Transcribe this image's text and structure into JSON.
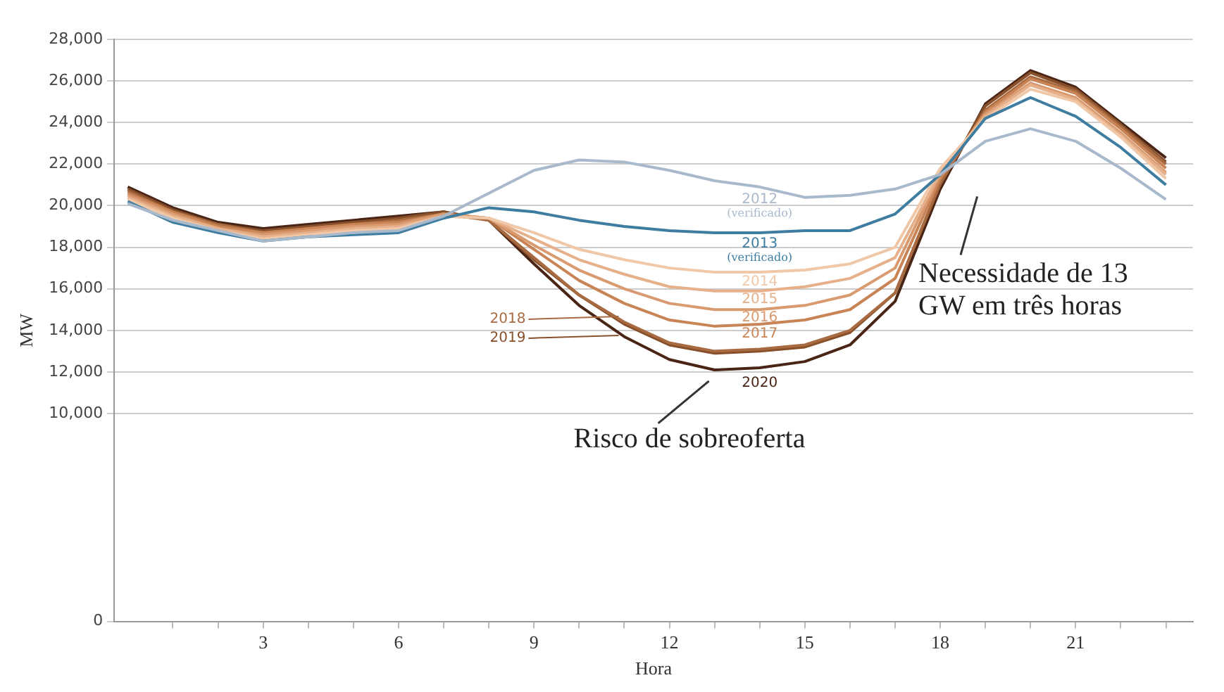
{
  "chart_data": {
    "type": "line",
    "xlabel": "Hora",
    "ylabel": "MW",
    "x": [
      0,
      1,
      2,
      3,
      4,
      5,
      6,
      7,
      8,
      9,
      10,
      11,
      12,
      13,
      14,
      15,
      16,
      17,
      18,
      19,
      20,
      21,
      22,
      23
    ],
    "xlim": [
      -0.3,
      23.6
    ],
    "xticks": [
      {
        "value": 1,
        "label": null
      },
      {
        "value": 2,
        "label": null
      },
      3,
      {
        "value": 4,
        "label": null
      },
      {
        "value": 5,
        "label": null
      },
      6,
      {
        "value": 7,
        "label": null
      },
      {
        "value": 8,
        "label": null
      },
      9,
      {
        "value": 10,
        "label": null
      },
      {
        "value": 11,
        "label": null
      },
      12,
      {
        "value": 13,
        "label": null
      },
      {
        "value": 14,
        "label": null
      },
      15,
      {
        "value": 16,
        "label": null
      },
      {
        "value": 17,
        "label": null
      },
      18,
      {
        "value": 19,
        "label": null
      },
      {
        "value": 20,
        "label": null
      },
      21,
      {
        "value": 22,
        "label": null
      },
      {
        "value": 23,
        "label": null
      }
    ],
    "ylim": [
      0,
      28000
    ],
    "yticks": [
      0,
      {
        "value": 10000,
        "label": "10,000"
      },
      {
        "value": 12000,
        "label": "12,000"
      },
      {
        "value": 14000,
        "label": "14,000"
      },
      {
        "value": 16000,
        "label": "16,000"
      },
      {
        "value": 18000,
        "label": "18,000"
      },
      {
        "value": 20000,
        "label": "20,000"
      },
      {
        "value": 22000,
        "label": "22,000"
      },
      {
        "value": 24000,
        "label": "24,000"
      },
      {
        "value": 26000,
        "label": "26,000"
      },
      {
        "value": 28000,
        "label": "28,000"
      }
    ],
    "grid": "y",
    "legend": false,
    "marker": "none",
    "line_style": "solid",
    "series": [
      {
        "name": "2012 (verificado)",
        "color": "#a9b9cc",
        "values": [
          20100,
          19300,
          18800,
          18300,
          18500,
          18700,
          18800,
          19500,
          20600,
          21700,
          22200,
          22100,
          21700,
          21200,
          20900,
          20400,
          20500,
          20800,
          21500,
          23100,
          23700,
          23100,
          21800,
          20300
        ]
      },
      {
        "name": "2013 (verificado)",
        "color": "#3e7ca0",
        "values": [
          20200,
          19200,
          18700,
          18300,
          18500,
          18600,
          18700,
          19400,
          19900,
          19700,
          19300,
          19000,
          18800,
          18700,
          18700,
          18800,
          18800,
          19600,
          21500,
          24200,
          25200,
          24300,
          22800,
          21000
        ]
      },
      {
        "name": "2014",
        "color": "#f0c8a8",
        "values": [
          20300,
          19400,
          18800,
          18400,
          18600,
          18800,
          18900,
          19500,
          19400,
          18700,
          17900,
          17400,
          17000,
          16800,
          16800,
          16900,
          17200,
          18000,
          21800,
          24200,
          25600,
          25000,
          23300,
          21300
        ]
      },
      {
        "name": "2015",
        "color": "#e6b08a",
        "values": [
          20400,
          19500,
          18900,
          18500,
          18700,
          18900,
          19000,
          19500,
          19400,
          18400,
          17400,
          16700,
          16100,
          15900,
          15900,
          16100,
          16500,
          17500,
          21600,
          24300,
          25800,
          25100,
          23400,
          21500
        ]
      },
      {
        "name": "2016",
        "color": "#d99a70",
        "values": [
          20500,
          19600,
          18900,
          18600,
          18800,
          19000,
          19100,
          19600,
          19400,
          18100,
          16900,
          16000,
          15300,
          15000,
          15000,
          15200,
          15700,
          17000,
          21500,
          24400,
          25900,
          25200,
          23500,
          21600
        ]
      },
      {
        "name": "2017",
        "color": "#c98456",
        "values": [
          20600,
          19700,
          19000,
          18700,
          18900,
          19100,
          19200,
          19600,
          19400,
          17900,
          16400,
          15300,
          14500,
          14200,
          14300,
          14500,
          15000,
          16500,
          21300,
          24500,
          26100,
          25400,
          23700,
          21800
        ]
      },
      {
        "name": "2018",
        "color": "#a86a40",
        "values": [
          20700,
          19700,
          19100,
          18700,
          18900,
          19100,
          19300,
          19600,
          19300,
          17500,
          15700,
          14400,
          13400,
          13000,
          13100,
          13300,
          14000,
          15800,
          21100,
          24600,
          26200,
          25500,
          23800,
          22000
        ]
      },
      {
        "name": "2019",
        "color": "#87502b",
        "values": [
          20800,
          19800,
          19100,
          18800,
          19000,
          19200,
          19400,
          19700,
          19300,
          17400,
          15700,
          14300,
          13300,
          12900,
          13000,
          13200,
          13900,
          15800,
          21000,
          24800,
          26400,
          25600,
          23900,
          22100
        ]
      },
      {
        "name": "2020",
        "color": "#4a2414",
        "values": [
          20900,
          19900,
          19200,
          18900,
          19100,
          19300,
          19500,
          19700,
          19300,
          17200,
          15200,
          13700,
          12600,
          12100,
          12200,
          12500,
          13300,
          15400,
          20800,
          24900,
          26500,
          25700,
          24000,
          22300
        ]
      }
    ],
    "annotations": [
      "Necessidade de 13 GW em três horas",
      {
        "text": "Risco de sobreoferta",
        "x": 13,
        "y": 12100
      }
    ]
  }
}
